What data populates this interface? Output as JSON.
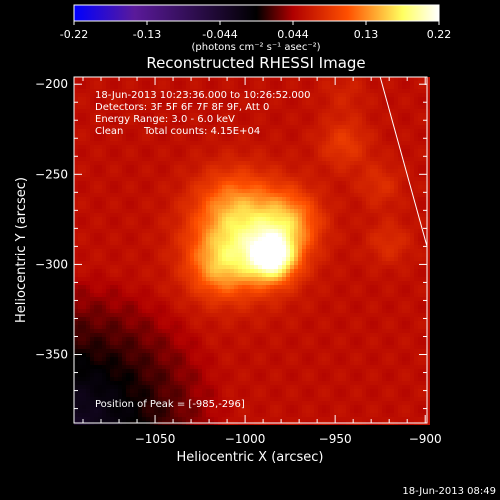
{
  "colorbar": {
    "tick_labels": [
      "-0.22",
      "-0.13",
      "-0.044",
      "0.044",
      "0.13",
      "0.22"
    ],
    "range": [
      -0.22,
      0.22
    ],
    "unit_label": "(photons cm⁻² s⁻¹ asec⁻²)",
    "colors": [
      "#0000ff",
      "#5a1a9a",
      "#000000",
      "#b00000",
      "#ff5000",
      "#ffff60",
      "#ffffff"
    ]
  },
  "footer": {
    "timestamp": "18-Jun-2013 08:49"
  },
  "chart_data": {
    "type": "heatmap",
    "title": "Reconstructed RHESSI Image",
    "xlabel": "Heliocentric X (arcsec)",
    "ylabel": "Heliocentric Y (arcsec)",
    "xlim": [
      -1095,
      -899
    ],
    "ylim": [
      -388,
      -196
    ],
    "x_ticks": [
      -1050,
      -1000,
      -950,
      -900
    ],
    "y_ticks": [
      -200,
      -250,
      -300,
      -350
    ],
    "x_tick_labels": [
      "−1050",
      "−1000",
      "−950",
      "−900"
    ],
    "y_tick_labels": [
      "−200",
      "−250",
      "−300",
      "−350"
    ],
    "annotations": {
      "time_range": "18-Jun-2013 10:23:36.000 to 10:26:52.000",
      "detectors": "Detectors: 3F 5F 6F 7F 8F 9F, Att 0",
      "energy": "Energy Range: 3.0 - 6.0 keV",
      "algorithm": "Clean",
      "total_counts": "Total counts: 4.15E+04",
      "peak": "Position of Peak = [-985,-296]"
    },
    "peak_position": [
      -985,
      -296
    ],
    "limb_line": [
      [
        -925,
        -196
      ],
      [
        -899,
        -290
      ]
    ],
    "sources": [
      {
        "x": -985,
        "y": -296,
        "amp": 0.13,
        "sigma": 9
      },
      {
        "x": -1000,
        "y": -285,
        "amp": 0.1,
        "sigma": 20
      },
      {
        "x": -975,
        "y": -276,
        "amp": 0.06,
        "sigma": 12
      },
      {
        "x": -1015,
        "y": -302,
        "amp": 0.05,
        "sigma": 12
      },
      {
        "x": -1008,
        "y": -265,
        "amp": 0.03,
        "sigma": 14
      },
      {
        "x": -945,
        "y": -233,
        "amp": 0.035,
        "sigma": 10
      },
      {
        "x": -925,
        "y": -256,
        "amp": 0.025,
        "sigma": 9
      },
      {
        "x": -920,
        "y": -288,
        "amp": 0.025,
        "sigma": 9
      },
      {
        "x": -945,
        "y": -205,
        "amp": 0.015,
        "sigma": 9
      }
    ],
    "background": 0.055
  }
}
